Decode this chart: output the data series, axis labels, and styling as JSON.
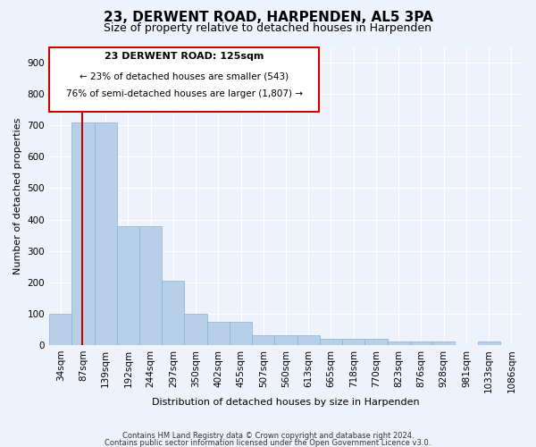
{
  "title": "23, DERWENT ROAD, HARPENDEN, AL5 3PA",
  "subtitle": "Size of property relative to detached houses in Harpenden",
  "xlabel": "Distribution of detached houses by size in Harpenden",
  "ylabel": "Number of detached properties",
  "bar_values": [
    100,
    710,
    710,
    380,
    380,
    205,
    100,
    75,
    75,
    30,
    30,
    30,
    20,
    20,
    20,
    10,
    10,
    10,
    0,
    10,
    0
  ],
  "bar_labels": [
    "34sqm",
    "87sqm",
    "139sqm",
    "192sqm",
    "244sqm",
    "297sqm",
    "350sqm",
    "402sqm",
    "455sqm",
    "507sqm",
    "560sqm",
    "613sqm",
    "665sqm",
    "718sqm",
    "770sqm",
    "823sqm",
    "876sqm",
    "928sqm",
    "981sqm",
    "1033sqm",
    "1086sqm"
  ],
  "bar_color": "#b8cfe8",
  "bar_edge_color": "#8aafd4",
  "vline_x": 1.45,
  "vline_color": "#cc0000",
  "ylim": [
    0,
    950
  ],
  "yticks": [
    0,
    100,
    200,
    300,
    400,
    500,
    600,
    700,
    800,
    900
  ],
  "annotation_title": "23 DERWENT ROAD: 125sqm",
  "annotation_line1": "← 23% of detached houses are smaller (543)",
  "annotation_line2": "76% of semi-detached houses are larger (1,807) →",
  "annotation_box_color": "#cc0000",
  "background_color": "#eef2fa",
  "grid_color": "#ffffff",
  "footer1": "Contains HM Land Registry data © Crown copyright and database right 2024.",
  "footer2": "Contains public sector information licensed under the Open Government Licence v3.0.",
  "title_fontsize": 11,
  "subtitle_fontsize": 9,
  "axis_label_fontsize": 8,
  "tick_fontsize": 7.5,
  "footer_fontsize": 6
}
